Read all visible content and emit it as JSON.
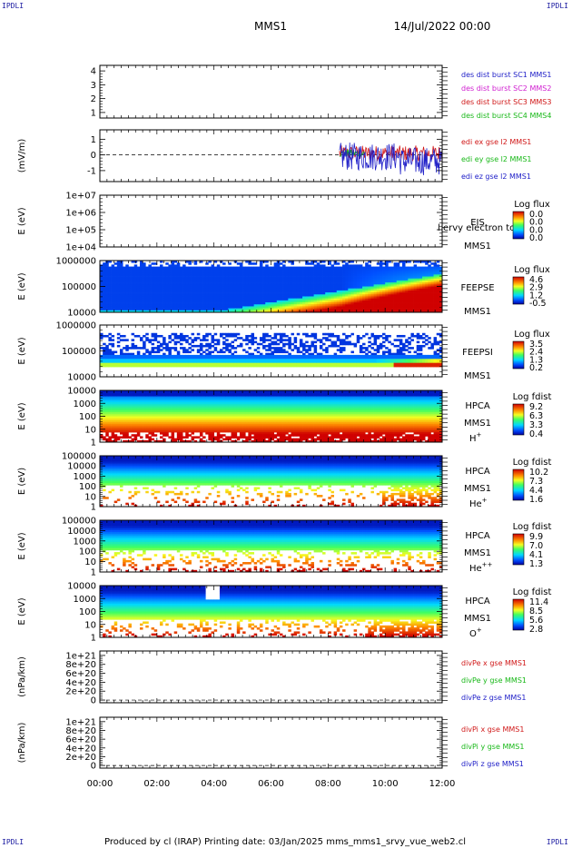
{
  "header": {
    "title": "MMS1",
    "date": "14/Jul/2022 00:00",
    "corner_left": "IPDLI",
    "corner_right": "IPDLI"
  },
  "footer": {
    "text": "Produced by cl (IRAP)   Printing date: 03/Jan/2025   mms_mms1_srvy_vue_web2.cl"
  },
  "x_axis": {
    "range_hours": [
      0,
      12
    ],
    "ticks": [
      "00:00",
      "02:00",
      "04:00",
      "06:00",
      "08:00",
      "10:00",
      "12:00"
    ]
  },
  "panels": [
    {
      "id": "des",
      "type": "empty",
      "yticks": [
        {
          "v": 4,
          "t": "4"
        },
        {
          "v": 3,
          "t": "3"
        },
        {
          "v": 2,
          "t": "2"
        },
        {
          "v": 1,
          "t": "1"
        }
      ],
      "ylim": [
        0.6,
        4.4
      ],
      "legend": [
        {
          "text": "des dist burst SC1 MMS1",
          "color": "#2020c8"
        },
        {
          "text": "des dist burst SC2 MMS2",
          "color": "#d020d0"
        },
        {
          "text": "des dist burst SC3 MMS3",
          "color": "#d01818"
        },
        {
          "text": "des dist burst SC4 MMS4",
          "color": "#18b818"
        }
      ]
    },
    {
      "id": "edi",
      "type": "line",
      "ylabel": "(mV/m)",
      "yticks": [
        {
          "v": 1,
          "t": "1"
        },
        {
          "v": 0,
          "t": "0"
        },
        {
          "v": -1,
          "t": "-1"
        }
      ],
      "ylim": [
        -1.7,
        1.6
      ],
      "zero_dashed": true,
      "legend": [
        {
          "text": "edi ex gse l2 MMS1",
          "color": "#d01818"
        },
        {
          "text": "edi ey gse l2 MMS1",
          "color": "#18b818"
        },
        {
          "text": "edi ez gse l2 MMS1",
          "color": "#2020c8"
        }
      ],
      "data_range_hours": [
        8.4,
        12.0
      ]
    },
    {
      "id": "eis",
      "type": "empty_spec",
      "ylabel": "E (eV)",
      "yticks": [
        {
          "t": "1e+07"
        },
        {
          "t": "1e+06"
        },
        {
          "t": "1e+05"
        },
        {
          "t": "1e+04"
        }
      ],
      "name": "EIS",
      "sub": "MMS1",
      "overlay_text": "l ervy electron to",
      "cbar": {
        "title": "Log flux",
        "labels": [
          "0.0",
          "0.0",
          "0.0",
          "0.0"
        ]
      }
    },
    {
      "id": "feepse",
      "type": "spec",
      "ylabel": "E (eV)",
      "yticks": [
        {
          "t": "1000000"
        },
        {
          "t": "100000"
        },
        {
          "t": "10000"
        }
      ],
      "name": "FEEPSE",
      "sub": "MMS1",
      "cbar": {
        "title": "Log flux",
        "labels": [
          "4.6",
          "2.9",
          "1.2",
          "-0.5"
        ]
      }
    },
    {
      "id": "feepsi",
      "type": "spec",
      "ylabel": "E (eV)",
      "yticks": [
        {
          "t": "1000000"
        },
        {
          "t": "100000"
        },
        {
          "t": "10000"
        }
      ],
      "name": "FEEPSI",
      "sub": "MMS1",
      "cbar": {
        "title": "Log flux",
        "labels": [
          "3.5",
          "2.4",
          "1.3",
          "0.2"
        ]
      }
    },
    {
      "id": "hpca_h",
      "type": "spec",
      "ylabel": "E (eV)",
      "yticks": [
        {
          "t": "10000"
        },
        {
          "t": "1000"
        },
        {
          "t": "100"
        },
        {
          "t": "10"
        },
        {
          "t": "1"
        }
      ],
      "name": "HPCA",
      "sub": "MMS1",
      "species": "H",
      "species_sup": "+",
      "cbar": {
        "title": "Log fdist",
        "labels": [
          "9.2",
          "6.3",
          "3.3",
          "0.4"
        ]
      }
    },
    {
      "id": "hpca_he",
      "type": "spec",
      "ylabel": "E (eV)",
      "yticks": [
        {
          "t": "100000"
        },
        {
          "t": "10000"
        },
        {
          "t": "1000"
        },
        {
          "t": "100"
        },
        {
          "t": "10"
        },
        {
          "t": "1"
        }
      ],
      "name": "HPCA",
      "sub": "MMS1",
      "species": "He",
      "species_sup": "+",
      "cbar": {
        "title": "Log fdist",
        "labels": [
          "10.2",
          "7.3",
          "4.4",
          "1.6"
        ]
      }
    },
    {
      "id": "hpca_hepp",
      "type": "spec",
      "ylabel": "E (eV)",
      "yticks": [
        {
          "t": "100000"
        },
        {
          "t": "10000"
        },
        {
          "t": "1000"
        },
        {
          "t": "100"
        },
        {
          "t": "10"
        },
        {
          "t": "1"
        }
      ],
      "name": "HPCA",
      "sub": "MMS1",
      "species": "He",
      "species_sup": "++",
      "cbar": {
        "title": "Log fdist",
        "labels": [
          "9.9",
          "7.0",
          "4.1",
          "1.3"
        ]
      }
    },
    {
      "id": "hpca_o",
      "type": "spec",
      "ylabel": "E (eV)",
      "yticks": [
        {
          "t": "10000"
        },
        {
          "t": "1000"
        },
        {
          "t": "100"
        },
        {
          "t": "10"
        },
        {
          "t": "1"
        }
      ],
      "name": "HPCA",
      "sub": "MMS1",
      "species": "O",
      "species_sup": "+",
      "cbar": {
        "title": "Log fdist",
        "labels": [
          "11.4",
          "8.5",
          "5.6",
          "2.8"
        ]
      }
    },
    {
      "id": "divpe",
      "type": "empty_line",
      "ylabel": "(nPa/km)",
      "yticks": [
        {
          "v": 1,
          "t": "1e+21"
        },
        {
          "v": 0.8,
          "t": "8e+20"
        },
        {
          "v": 0.6,
          "t": "6e+20"
        },
        {
          "v": 0.4,
          "t": "4e+20"
        },
        {
          "v": 0.2,
          "t": "2e+20"
        },
        {
          "v": 0,
          "t": "0"
        }
      ],
      "ylim": [
        -0.06,
        1.1
      ],
      "zero_dashed": true,
      "legend": [
        {
          "text": "divPe x gse MMS1",
          "color": "#d01818"
        },
        {
          "text": "divPe y gse MMS1",
          "color": "#18b818"
        },
        {
          "text": "divPe z gse MMS1",
          "color": "#2020c8"
        }
      ]
    },
    {
      "id": "divpi",
      "type": "empty_line",
      "ylabel": "(nPa/km)",
      "yticks": [
        {
          "v": 1,
          "t": "1e+21"
        },
        {
          "v": 0.8,
          "t": "8e+20"
        },
        {
          "v": 0.6,
          "t": "6e+20"
        },
        {
          "v": 0.4,
          "t": "4e+20"
        },
        {
          "v": 0.2,
          "t": "2e+20"
        },
        {
          "v": 0,
          "t": "0"
        }
      ],
      "ylim": [
        -0.06,
        1.1
      ],
      "zero_dashed": true,
      "legend": [
        {
          "text": "divPi x gse MMS1",
          "color": "#d01818"
        },
        {
          "text": "divPi y gse MMS1",
          "color": "#18b818"
        },
        {
          "text": "divPi z gse MMS1",
          "color": "#2020c8"
        }
      ]
    }
  ],
  "chart_data": {
    "type": "heatmap",
    "description_units": {
      "x": "UT hours",
      "y": "energy (eV) / field"
    },
    "x": [
      0,
      2,
      4,
      6,
      8,
      10,
      12
    ],
    "xlabels": [
      "00:00",
      "02:00",
      "04:00",
      "06:00",
      "08:00",
      "10:00",
      "12:00"
    ],
    "colorbar": [
      "#0000a0",
      "#0060ff",
      "#00d0ff",
      "#40ff80",
      "#f0ff20",
      "#ff9000",
      "#e00000",
      "#a00000"
    ]
  }
}
